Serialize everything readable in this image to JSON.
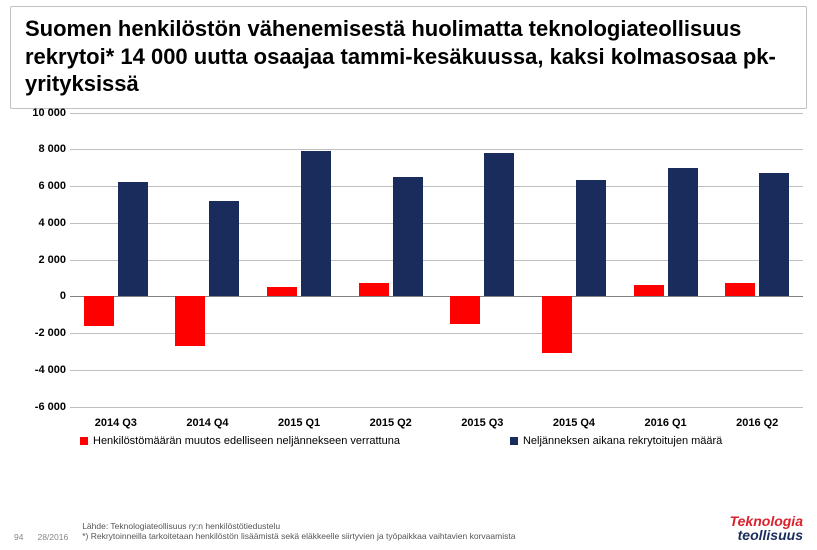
{
  "title": "Suomen henkilöstön vähenemisestä huolimatta teknologiateollisuus rekrytoi* 14 000 uutta osaajaa tammi-kesäkuussa, kaksi kolmasosaa pk-yrityksissä",
  "chart": {
    "type": "bar",
    "ymin": -6000,
    "ymax": 10000,
    "ytick_step": 2000,
    "yticks": [
      10000,
      8000,
      6000,
      4000,
      2000,
      0,
      -2000,
      -4000,
      -6000
    ],
    "ytick_labels": [
      "10 000",
      "8 000",
      "6 000",
      "4 000",
      "2 000",
      "0",
      "-2 000",
      "-4 000",
      "-6 000"
    ],
    "grid_color": "#bfbfbf",
    "baseline_color": "#808080",
    "categories": [
      "2014 Q3",
      "2014 Q4",
      "2015 Q1",
      "2015 Q2",
      "2015 Q3",
      "2015 Q4",
      "2016 Q1",
      "2016 Q2"
    ],
    "series": [
      {
        "name": "Henkilöstömäärän muutos edelliseen neljännekseen verrattuna",
        "color": "#ff0000",
        "values": [
          -1600,
          -2700,
          500,
          700,
          -1500,
          -3100,
          600,
          700
        ]
      },
      {
        "name": "Neljänneksen aikana rekrytoitujen määrä",
        "color": "#1a2c5b",
        "values": [
          6200,
          5200,
          7900,
          6500,
          7800,
          6300,
          7000,
          6700
        ]
      }
    ]
  },
  "footer": {
    "slide_num": "94",
    "date": "28/2016",
    "note1": "Lähde: Teknologiateollisuus ry:n henkilöstötiedustelu",
    "note2": "*) Rekrytoinneilla tarkoitetaan henkilöstön lisäämistä sekä eläkkeelle siirtyvien ja työpaikkaa vaihtavien korvaamista"
  },
  "brand": {
    "l1": "Teknologia",
    "l2": "teollisuus"
  }
}
